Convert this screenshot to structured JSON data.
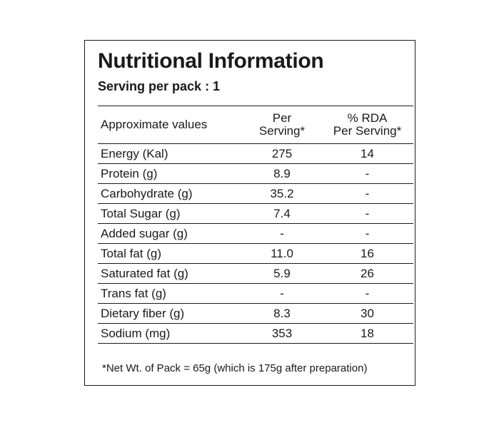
{
  "title": "Nutritional Information",
  "serving": "Serving per pack : 1",
  "header": {
    "col1": "Approximate values",
    "col2_line1": "Per",
    "col2_line2": "Serving*",
    "col3_line1": "% RDA",
    "col3_line2": "Per Serving*"
  },
  "rows": [
    {
      "name": "Energy (Kal)",
      "per_serving": "275",
      "rda": "14"
    },
    {
      "name": "Protein (g)",
      "per_serving": "8.9",
      "rda": "-"
    },
    {
      "name": "Carbohydrate (g)",
      "per_serving": "35.2",
      "rda": "-"
    },
    {
      "name": "Total Sugar (g)",
      "per_serving": "7.4",
      "rda": "-"
    },
    {
      "name": "Added sugar (g)",
      "per_serving": "-",
      "rda": "-"
    },
    {
      "name": "Total fat (g)",
      "per_serving": "11.0",
      "rda": "16"
    },
    {
      "name": "Saturated fat (g)",
      "per_serving": "5.9",
      "rda": "26"
    },
    {
      "name": "Trans fat (g)",
      "per_serving": "-",
      "rda": "-"
    },
    {
      "name": "Dietary fiber (g)",
      "per_serving": "8.3",
      "rda": "30"
    },
    {
      "name": "Sodium (mg)",
      "per_serving": "353",
      "rda": "18"
    }
  ],
  "footnote": "*Net Wt. of Pack = 65g (which is 175g after preparation)"
}
